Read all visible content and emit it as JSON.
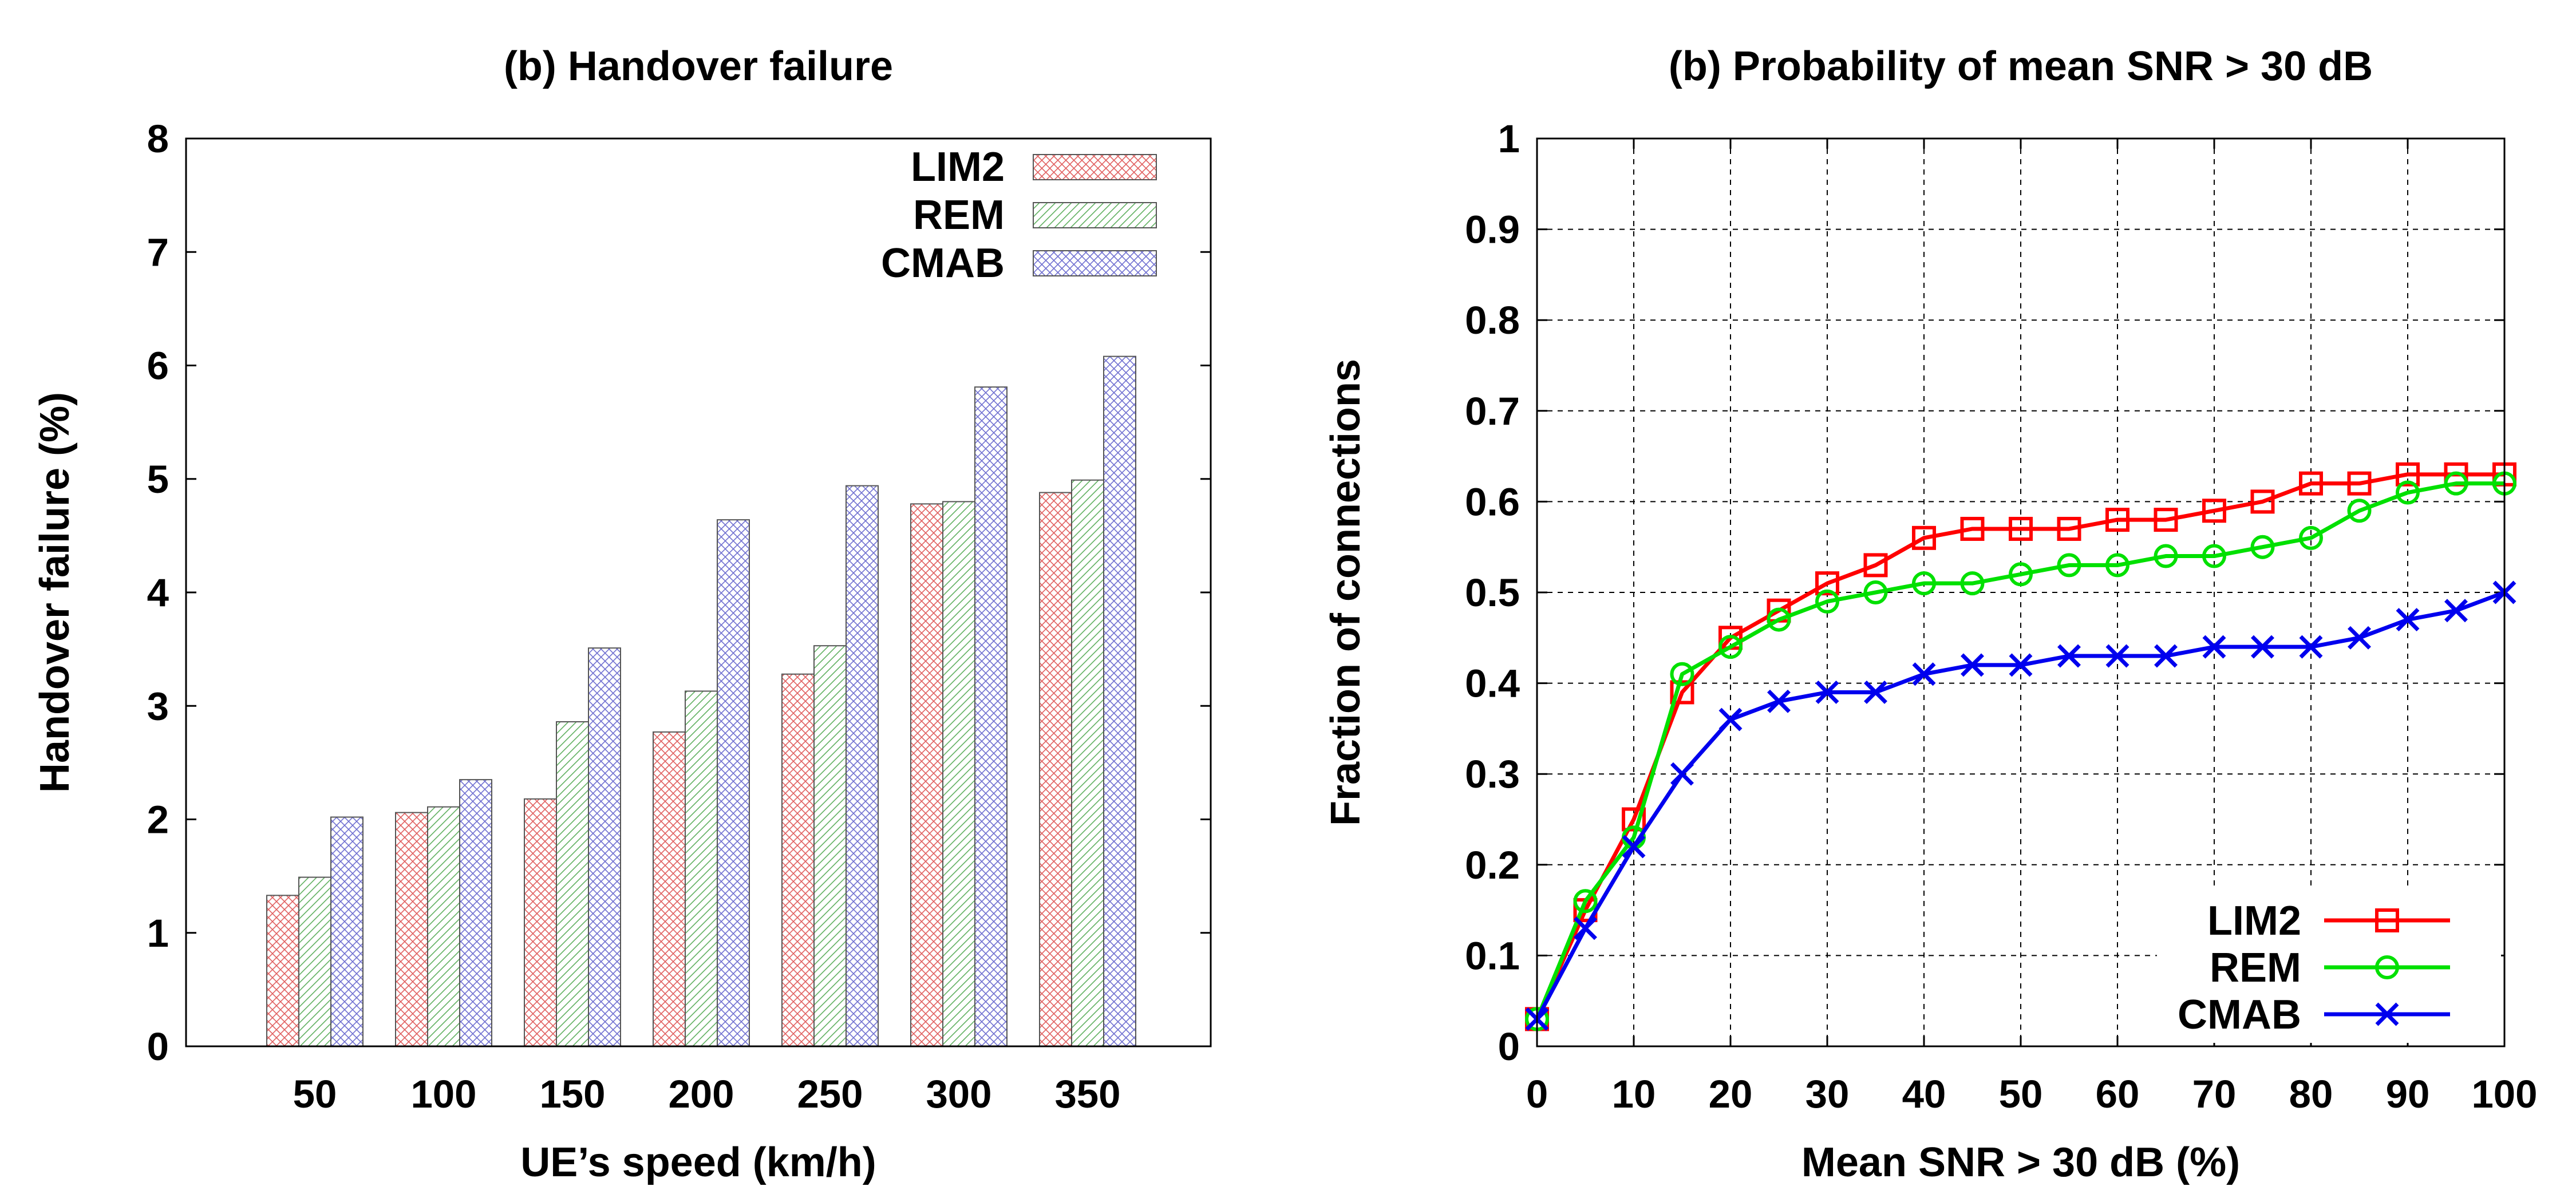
{
  "colors": {
    "LIM2": "#ff0000",
    "REM": "#00e000",
    "CMAB": "#0000ee",
    "LIM2_fill": "#e05050",
    "REM_fill": "#50b050",
    "CMAB_fill": "#6060d0",
    "grid": "#000000"
  },
  "chart_data": [
    {
      "type": "bar",
      "title": "(b) Handover failure",
      "xlabel": "UE’s speed (km/h)",
      "ylabel": "Handover failure (%)",
      "categories": [
        "50",
        "100",
        "150",
        "200",
        "250",
        "300",
        "350"
      ],
      "series": [
        {
          "name": "LIM2",
          "values": [
            1.33,
            2.06,
            2.18,
            2.77,
            3.28,
            4.78,
            4.88
          ]
        },
        {
          "name": "REM",
          "values": [
            1.49,
            2.11,
            2.86,
            3.13,
            3.53,
            4.8,
            4.99
          ]
        },
        {
          "name": "CMAB",
          "values": [
            2.02,
            2.35,
            3.51,
            4.64,
            4.94,
            5.81,
            6.08
          ]
        }
      ],
      "ylim": [
        0,
        8
      ],
      "yticks": [
        0,
        1,
        2,
        3,
        4,
        5,
        6,
        7,
        8
      ],
      "ytick_labels": [
        "0",
        "1",
        "2",
        "3",
        "4",
        "5",
        "6",
        "7",
        "8"
      ],
      "grid": false,
      "legend_position": "top-right"
    },
    {
      "type": "line",
      "title": "(b) Probability of mean SNR > 30 dB",
      "xlabel": "Mean SNR > 30 dB (%)",
      "ylabel": "Fraction of connections",
      "x": [
        0,
        5,
        10,
        15,
        20,
        25,
        30,
        35,
        40,
        45,
        50,
        55,
        60,
        65,
        70,
        75,
        80,
        85,
        90,
        95,
        100
      ],
      "series": [
        {
          "name": "LIM2",
          "marker": "square",
          "values": [
            0.03,
            0.15,
            0.25,
            0.39,
            0.45,
            0.48,
            0.51,
            0.53,
            0.56,
            0.57,
            0.57,
            0.57,
            0.58,
            0.58,
            0.59,
            0.6,
            0.62,
            0.62,
            0.63,
            0.63,
            0.63
          ]
        },
        {
          "name": "REM",
          "marker": "circle",
          "values": [
            0.03,
            0.16,
            0.23,
            0.41,
            0.44,
            0.47,
            0.49,
            0.5,
            0.51,
            0.51,
            0.52,
            0.53,
            0.53,
            0.54,
            0.54,
            0.55,
            0.56,
            0.59,
            0.61,
            0.62,
            0.62
          ]
        },
        {
          "name": "CMAB",
          "marker": "x",
          "values": [
            0.03,
            0.13,
            0.22,
            0.3,
            0.36,
            0.38,
            0.39,
            0.39,
            0.41,
            0.42,
            0.42,
            0.43,
            0.43,
            0.43,
            0.44,
            0.44,
            0.44,
            0.45,
            0.47,
            0.48,
            0.5
          ]
        }
      ],
      "xlim": [
        0,
        100
      ],
      "ylim": [
        0,
        1
      ],
      "xticks": [
        0,
        10,
        20,
        30,
        40,
        50,
        60,
        70,
        80,
        90,
        100
      ],
      "xtick_labels": [
        "0",
        "10",
        "20",
        "30",
        "40",
        "50",
        "60",
        "70",
        "80",
        "90",
        "100"
      ],
      "yticks": [
        0,
        0.1,
        0.2,
        0.3,
        0.4,
        0.5,
        0.6,
        0.7,
        0.8,
        0.9,
        1
      ],
      "ytick_labels": [
        "0",
        "0.1",
        "0.2",
        "0.3",
        "0.4",
        "0.5",
        "0.6",
        "0.7",
        "0.8",
        "0.9",
        "1"
      ],
      "grid": true,
      "legend_position": "bottom-right"
    }
  ]
}
